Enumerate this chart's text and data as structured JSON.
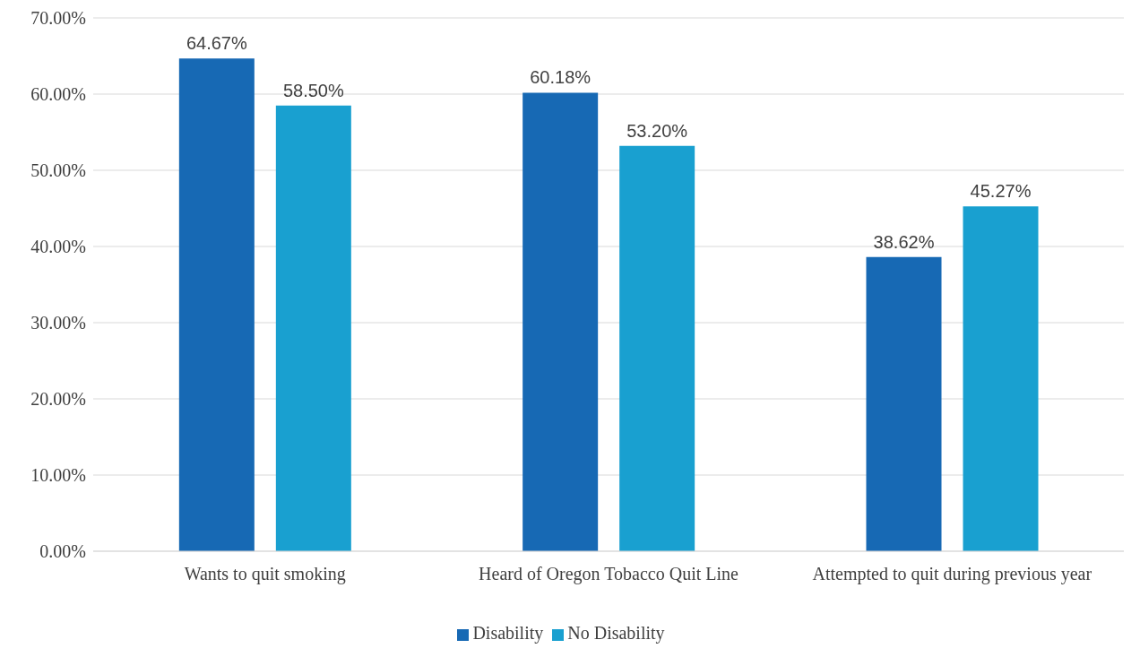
{
  "chart_data": {
    "type": "bar",
    "categories": [
      "Wants to quit smoking",
      "Heard of Oregon Tobacco Quit Line",
      "Attempted to quit during previous year"
    ],
    "series": [
      {
        "name": "Disability",
        "color": "#1769b4",
        "values": [
          64.67,
          60.18,
          38.62
        ],
        "value_labels": [
          "64.67%",
          "60.18%",
          "38.62%"
        ]
      },
      {
        "name": "No Disability",
        "color": "#19a0d0",
        "values": [
          58.5,
          53.2,
          45.27
        ],
        "value_labels": [
          "58.50%",
          "53.20%",
          "45.27%"
        ]
      }
    ],
    "ylim": [
      0,
      70
    ],
    "yticks": [
      {
        "value": 0,
        "label": "0.00%"
      },
      {
        "value": 10,
        "label": "10.00%"
      },
      {
        "value": 20,
        "label": "20.00%"
      },
      {
        "value": 30,
        "label": "30.00%"
      },
      {
        "value": 40,
        "label": "40.00%"
      },
      {
        "value": 50,
        "label": "50.00%"
      },
      {
        "value": 60,
        "label": "60.00%"
      },
      {
        "value": 70,
        "label": "70.00%"
      }
    ],
    "grid": "y",
    "legend": "bottom"
  }
}
